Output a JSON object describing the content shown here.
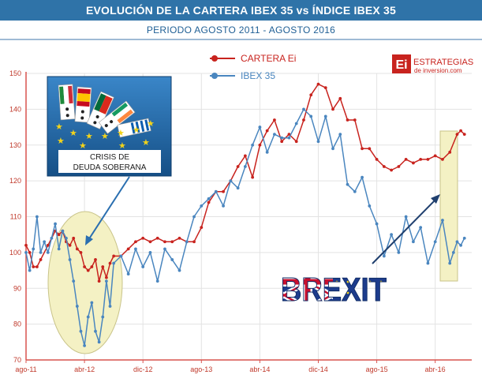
{
  "header": {
    "title": "EVOLUCIÓN DE LA CARTERA IBEX 35 vs ÍNDICE IBEX 35",
    "subtitle": "PERIODO AGOSTO 2011 - AGOSTO 2016"
  },
  "logo": {
    "mark": "Ei",
    "name": "ESTRATEGIAS",
    "site": "de inversion.com"
  },
  "callout": {
    "line1": "CRISIS DE",
    "line2": "DEUDA SOBERANA"
  },
  "brexit_label": "BREXIT",
  "colors": {
    "cartera": "#c8231e",
    "ibex": "#4a86bf",
    "highlight_fill": "#f4f1c4",
    "highlight_stroke": "#c9c48a",
    "arrow": "#1f3f6e",
    "axis": "#d9534f",
    "grid": "#e3e3e3",
    "tick_text": "#c0392b",
    "callout_bg": "#1f63a8"
  },
  "chart_data": {
    "type": "line",
    "title": "EVOLUCIÓN DE LA CARTERA IBEX 35 vs ÍNDICE IBEX 35",
    "xlabel": "",
    "ylabel": "",
    "ylim": [
      70,
      150
    ],
    "xlim": [
      0,
      61
    ],
    "grid": true,
    "legend": "top-center",
    "x_ticks": [
      {
        "x": 0,
        "label": "ago-11"
      },
      {
        "x": 8,
        "label": "abr-12"
      },
      {
        "x": 16,
        "label": "dic-12"
      },
      {
        "x": 24,
        "label": "ago-13"
      },
      {
        "x": 32,
        "label": "abr-14"
      },
      {
        "x": 40,
        "label": "dic-14"
      },
      {
        "x": 48,
        "label": "ago-15"
      },
      {
        "x": 56,
        "label": "abr-16"
      }
    ],
    "y_ticks": [
      70,
      80,
      90,
      100,
      110,
      120,
      130,
      140,
      150
    ],
    "series": [
      {
        "name": "CARTERA Ei",
        "x": [
          0,
          0.5,
          1,
          1.5,
          2,
          3,
          4,
          4.5,
          5,
          5.5,
          6,
          6.5,
          7,
          7.5,
          8,
          8.5,
          9,
          9.5,
          10,
          10.5,
          11,
          11.5,
          12,
          13,
          14,
          15,
          16,
          17,
          18,
          19,
          20,
          21,
          22,
          23,
          24,
          25,
          26,
          27,
          28,
          29,
          30,
          31,
          32,
          33,
          34,
          35,
          36,
          37,
          38,
          39,
          40,
          41,
          42,
          43,
          44,
          45,
          46,
          47,
          48,
          49,
          50,
          51,
          52,
          53,
          54,
          55,
          56,
          57,
          58,
          59,
          59.5,
          60
        ],
        "values": [
          102,
          100,
          96,
          96,
          98,
          102,
          106,
          105,
          106,
          103,
          102,
          104,
          101,
          100,
          96,
          95,
          96,
          98,
          92,
          96,
          93,
          97,
          99,
          99,
          101,
          103,
          104,
          103,
          104,
          103,
          103,
          104,
          103,
          103,
          107,
          114,
          117,
          117,
          120,
          124,
          127,
          121,
          130,
          134,
          137,
          131,
          133,
          131,
          137,
          144,
          147,
          146,
          140,
          143,
          137,
          137,
          129,
          129,
          126,
          124,
          123,
          124,
          126,
          125,
          126,
          126,
          127,
          126,
          128,
          133,
          134,
          133
        ]
      },
      {
        "name": "IBEX 35",
        "x": [
          0,
          0.5,
          1,
          1.5,
          2,
          2.5,
          3,
          3.5,
          4,
          4.5,
          5,
          5.5,
          6,
          6.5,
          7,
          7.5,
          8,
          8.5,
          9,
          9.5,
          10,
          10.5,
          11,
          11.5,
          12,
          13,
          14,
          15,
          16,
          17,
          18,
          19,
          20,
          21,
          22,
          23,
          24,
          25,
          26,
          27,
          28,
          29,
          30,
          31,
          32,
          33,
          34,
          35,
          36,
          37,
          38,
          39,
          40,
          41,
          42,
          43,
          44,
          45,
          46,
          47,
          48,
          49,
          50,
          51,
          52,
          53,
          54,
          55,
          56,
          57,
          58,
          58.5,
          59,
          59.5,
          60
        ],
        "values": [
          100,
          95,
          101,
          110,
          100,
          103,
          100,
          104,
          108,
          101,
          106,
          104,
          98,
          92,
          85,
          78,
          74,
          82,
          86,
          78,
          75,
          82,
          92,
          85,
          97,
          99,
          94,
          101,
          96,
          100,
          92,
          101,
          98,
          95,
          103,
          110,
          113,
          115,
          117,
          113,
          120,
          118,
          124,
          130,
          135,
          128,
          133,
          132,
          132,
          136,
          140,
          138,
          131,
          138,
          129,
          133,
          119,
          117,
          121,
          113,
          108,
          99,
          105,
          100,
          110,
          103,
          107,
          97,
          103,
          109,
          97,
          100,
          103,
          102,
          104
        ]
      }
    ]
  }
}
